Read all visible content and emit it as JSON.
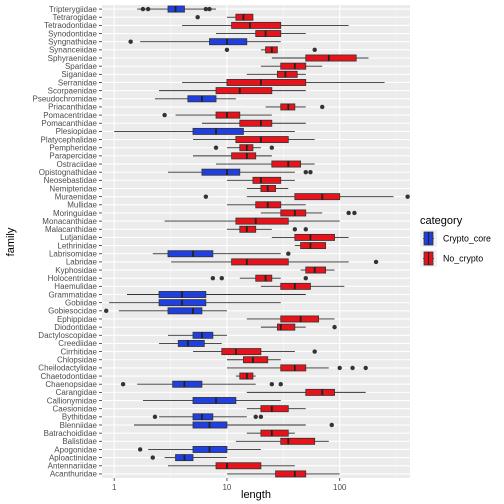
{
  "chart_data": {
    "type": "boxplot",
    "orientation": "horizontal",
    "xlabel": "length",
    "ylabel": "family",
    "x_scale": "log10",
    "x_ticks": [
      1,
      10,
      100
    ],
    "x_tick_labels": [
      "1",
      "10",
      "100"
    ],
    "xlim": [
      0.78,
      420
    ],
    "grid": true,
    "legend": {
      "title": "category",
      "placement": "right",
      "entries": [
        {
          "label": "Crypto_core",
          "color": "#1f3fe0"
        },
        {
          "label": "No_crypto",
          "color": "#e8121a"
        }
      ]
    },
    "families": [
      {
        "name": "Tripterygiidae",
        "category": "Crypto_core",
        "whisker_low": 1.6,
        "q1": 3.0,
        "median": 3.5,
        "q3": 4.2,
        "whisker_high": 8.0,
        "outliers": [
          1.8,
          2.0,
          6.5,
          7.0
        ]
      },
      {
        "name": "Tetrarogidae",
        "category": "No_crypto",
        "whisker_low": 10,
        "q1": 12,
        "median": 14,
        "q3": 17,
        "whisker_high": 17,
        "outliers": [
          5.5
        ]
      },
      {
        "name": "Tetraodontidae",
        "category": "No_crypto",
        "whisker_low": 4,
        "q1": 11,
        "median": 16,
        "q3": 30,
        "whisker_high": 120,
        "outliers": []
      },
      {
        "name": "Synodontidae",
        "category": "No_crypto",
        "whisker_low": 8,
        "q1": 18,
        "median": 22,
        "q3": 30,
        "whisker_high": 50,
        "outliers": []
      },
      {
        "name": "Syngnathidae",
        "category": "Crypto_core",
        "whisker_low": 1.7,
        "q1": 7,
        "median": 10,
        "q3": 15,
        "whisker_high": 30,
        "outliers": [
          1.4
        ]
      },
      {
        "name": "Synanceiidae",
        "category": "No_crypto",
        "whisker_low": 20,
        "q1": 22,
        "median": 25,
        "q3": 28,
        "whisker_high": 28,
        "outliers": [
          10,
          60
        ]
      },
      {
        "name": "Sphyraenidae",
        "category": "No_crypto",
        "whisker_low": 25,
        "q1": 50,
        "median": 80,
        "q3": 140,
        "whisker_high": 180,
        "outliers": []
      },
      {
        "name": "Sparidae",
        "category": "No_crypto",
        "whisker_low": 20,
        "q1": 30,
        "median": 40,
        "q3": 50,
        "whisker_high": 70,
        "outliers": []
      },
      {
        "name": "Siganidae",
        "category": "No_crypto",
        "whisker_low": 15,
        "q1": 28,
        "median": 33,
        "q3": 42,
        "whisker_high": 50,
        "outliers": []
      },
      {
        "name": "Serranidae",
        "category": "No_crypto",
        "whisker_low": 4,
        "q1": 10,
        "median": 20,
        "q3": 50,
        "whisker_high": 250,
        "outliers": []
      },
      {
        "name": "Scorpaenidae",
        "category": "No_crypto",
        "whisker_low": 2.5,
        "q1": 8,
        "median": 13,
        "q3": 25,
        "whisker_high": 50,
        "outliers": []
      },
      {
        "name": "Pseudochromidae",
        "category": "Crypto_core",
        "whisker_low": 2.3,
        "q1": 4.5,
        "median": 6,
        "q3": 8,
        "whisker_high": 12,
        "outliers": []
      },
      {
        "name": "Priacanthidae",
        "category": "No_crypto",
        "whisker_low": 22,
        "q1": 30,
        "median": 35,
        "q3": 40,
        "whisker_high": 50,
        "outliers": [
          70
        ]
      },
      {
        "name": "Pomacentridae",
        "category": "No_crypto",
        "whisker_low": 3.5,
        "q1": 8,
        "median": 10,
        "q3": 13,
        "whisker_high": 25,
        "outliers": [
          2.8
        ]
      },
      {
        "name": "Pomacanthidae",
        "category": "No_crypto",
        "whisker_low": 6,
        "q1": 13,
        "median": 20,
        "q3": 25,
        "whisker_high": 50,
        "outliers": []
      },
      {
        "name": "Plesiopidae",
        "category": "Crypto_core",
        "whisker_low": 1,
        "q1": 5,
        "median": 8,
        "q3": 14,
        "whisker_high": 40,
        "outliers": []
      },
      {
        "name": "Platycephalidae",
        "category": "No_crypto",
        "whisker_low": 5,
        "q1": 12,
        "median": 20,
        "q3": 35,
        "whisker_high": 60,
        "outliers": []
      },
      {
        "name": "Pempheridae",
        "category": "No_crypto",
        "whisker_low": 10,
        "q1": 13,
        "median": 15,
        "q3": 17,
        "whisker_high": 20,
        "outliers": [
          8,
          25
        ]
      },
      {
        "name": "Parapercidae",
        "category": "No_crypto",
        "whisker_low": 5,
        "q1": 11,
        "median": 15,
        "q3": 18,
        "whisker_high": 25,
        "outliers": []
      },
      {
        "name": "Ostraciidae",
        "category": "No_crypto",
        "whisker_low": 8,
        "q1": 25,
        "median": 35,
        "q3": 45,
        "whisker_high": 60,
        "outliers": []
      },
      {
        "name": "Opistognathidae",
        "category": "Crypto_core",
        "whisker_low": 3,
        "q1": 6,
        "median": 10,
        "q3": 13,
        "whisker_high": 40,
        "outliers": [
          50,
          55
        ]
      },
      {
        "name": "Neosebastidae",
        "category": "No_crypto",
        "whisker_low": 10,
        "q1": 17,
        "median": 20,
        "q3": 30,
        "whisker_high": 40,
        "outliers": []
      },
      {
        "name": "Nemipteridae",
        "category": "No_crypto",
        "whisker_low": 15,
        "q1": 20,
        "median": 23,
        "q3": 27,
        "whisker_high": 35,
        "outliers": []
      },
      {
        "name": "Muraenidae",
        "category": "No_crypto",
        "whisker_low": 15,
        "q1": 40,
        "median": 70,
        "q3": 100,
        "whisker_high": 300,
        "outliers": [
          6.5,
          400
        ]
      },
      {
        "name": "Mullidae",
        "category": "No_crypto",
        "whisker_low": 10,
        "q1": 18,
        "median": 23,
        "q3": 30,
        "whisker_high": 50,
        "outliers": []
      },
      {
        "name": "Moringuidae",
        "category": "No_crypto",
        "whisker_low": 20,
        "q1": 30,
        "median": 40,
        "q3": 50,
        "whisker_high": 70,
        "outliers": [
          120,
          135
        ]
      },
      {
        "name": "Monacanthidae",
        "category": "No_crypto",
        "whisker_low": 2.8,
        "q1": 12,
        "median": 18,
        "q3": 35,
        "whisker_high": 100,
        "outliers": []
      },
      {
        "name": "Malacanthidae",
        "category": "No_crypto",
        "whisker_low": 10,
        "q1": 13,
        "median": 15,
        "q3": 18,
        "whisker_high": 25,
        "outliers": [
          40,
          50
        ]
      },
      {
        "name": "Lutjanidae",
        "category": "No_crypto",
        "whisker_low": 25,
        "q1": 40,
        "median": 55,
        "q3": 90,
        "whisker_high": 120,
        "outliers": []
      },
      {
        "name": "Lethrinidae",
        "category": "No_crypto",
        "whisker_low": 40,
        "q1": 45,
        "median": 55,
        "q3": 75,
        "whisker_high": 75,
        "outliers": []
      },
      {
        "name": "Labrisomidae",
        "category": "Crypto_core",
        "whisker_low": 2.2,
        "q1": 3,
        "median": 5,
        "q3": 7.5,
        "whisker_high": 30,
        "outliers": [
          35
        ]
      },
      {
        "name": "Labridae",
        "category": "No_crypto",
        "whisker_low": 3.2,
        "q1": 11,
        "median": 15,
        "q3": 35,
        "whisker_high": 120,
        "outliers": [
          210
        ]
      },
      {
        "name": "Kyphosidae",
        "category": "No_crypto",
        "whisker_low": 45,
        "q1": 50,
        "median": 60,
        "q3": 75,
        "whisker_high": 90,
        "outliers": []
      },
      {
        "name": "Holocentridae",
        "category": "No_crypto",
        "whisker_low": 13,
        "q1": 18,
        "median": 22,
        "q3": 25,
        "whisker_high": 30,
        "outliers": [
          7.5,
          9,
          50
        ]
      },
      {
        "name": "Haemulidae",
        "category": "No_crypto",
        "whisker_low": 20,
        "q1": 30,
        "median": 40,
        "q3": 55,
        "whisker_high": 110,
        "outliers": []
      },
      {
        "name": "Grammatidae",
        "category": "Crypto_core",
        "whisker_low": 1.3,
        "q1": 2.5,
        "median": 4,
        "q3": 6.5,
        "whisker_high": 50,
        "outliers": []
      },
      {
        "name": "Gobiidae",
        "category": "Crypto_core",
        "whisker_low": 0.9,
        "q1": 2.5,
        "median": 4,
        "q3": 6.5,
        "whisker_high": 30,
        "outliers": []
      },
      {
        "name": "Gobiesocidae",
        "category": "Crypto_core",
        "whisker_low": 1.1,
        "q1": 3,
        "median": 5,
        "q3": 6,
        "whisker_high": 10,
        "outliers": [
          0.85
        ]
      },
      {
        "name": "Ephippidae",
        "category": "No_crypto",
        "whisker_low": 15,
        "q1": 30,
        "median": 45,
        "q3": 65,
        "whisker_high": 90,
        "outliers": []
      },
      {
        "name": "Diodontidae",
        "category": "No_crypto",
        "whisker_low": 20,
        "q1": 28,
        "median": 30,
        "q3": 40,
        "whisker_high": 50,
        "outliers": [
          90
        ]
      },
      {
        "name": "Dactyloscopidae",
        "category": "Crypto_core",
        "whisker_low": 3,
        "q1": 5,
        "median": 6,
        "q3": 7.5,
        "whisker_high": 10,
        "outliers": []
      },
      {
        "name": "Creediidae",
        "category": "Crypto_core",
        "whisker_low": 2.5,
        "q1": 3.7,
        "median": 4.5,
        "q3": 6.3,
        "whisker_high": 9,
        "outliers": []
      },
      {
        "name": "Cirrhitidae",
        "category": "No_crypto",
        "whisker_low": 5,
        "q1": 9,
        "median": 12,
        "q3": 20,
        "whisker_high": 40,
        "outliers": [
          60
        ]
      },
      {
        "name": "Chlopsidae",
        "category": "No_crypto",
        "whisker_low": 10,
        "q1": 14,
        "median": 17,
        "q3": 23,
        "whisker_high": 30,
        "outliers": []
      },
      {
        "name": "Cheilodactylidae",
        "category": "No_crypto",
        "whisker_low": 10,
        "q1": 30,
        "median": 40,
        "q3": 50,
        "whisker_high": 80,
        "outliers": [
          100,
          130,
          170
        ]
      },
      {
        "name": "Chaetodontidae",
        "category": "No_crypto",
        "whisker_low": 12,
        "q1": 13,
        "median": 15,
        "q3": 17,
        "whisker_high": 18,
        "outliers": []
      },
      {
        "name": "Chaenopsidae",
        "category": "Crypto_core",
        "whisker_low": 1.6,
        "q1": 3.3,
        "median": 4.2,
        "q3": 6,
        "whisker_high": 18,
        "outliers": [
          1.2,
          25,
          30
        ]
      },
      {
        "name": "Carangidae",
        "category": "No_crypto",
        "whisker_low": 15,
        "q1": 50,
        "median": 70,
        "q3": 90,
        "whisker_high": 170,
        "outliers": []
      },
      {
        "name": "Callionymidae",
        "category": "Crypto_core",
        "whisker_low": 1.8,
        "q1": 5,
        "median": 8,
        "q3": 12,
        "whisker_high": 30,
        "outliers": []
      },
      {
        "name": "Caesionidae",
        "category": "No_crypto",
        "whisker_low": 15,
        "q1": 20,
        "median": 25,
        "q3": 35,
        "whisker_high": 50,
        "outliers": []
      },
      {
        "name": "Bythitidae",
        "category": "Crypto_core",
        "whisker_low": 2.5,
        "q1": 5,
        "median": 6,
        "q3": 7.5,
        "whisker_high": 15,
        "outliers": [
          2.3,
          18,
          20
        ]
      },
      {
        "name": "Blenniidae",
        "category": "Crypto_core",
        "whisker_low": 1.5,
        "q1": 5,
        "median": 7,
        "q3": 10,
        "whisker_high": 50,
        "outliers": [
          85
        ]
      },
      {
        "name": "Batrachoididae",
        "category": "No_crypto",
        "whisker_low": 15,
        "q1": 20,
        "median": 25,
        "q3": 35,
        "whisker_high": 40,
        "outliers": []
      },
      {
        "name": "Balistidae",
        "category": "No_crypto",
        "whisker_low": 12,
        "q1": 30,
        "median": 35,
        "q3": 60,
        "whisker_high": 80,
        "outliers": []
      },
      {
        "name": "Apogonidae",
        "category": "Crypto_core",
        "whisker_low": 2,
        "q1": 5,
        "median": 7,
        "q3": 10,
        "whisker_high": 20,
        "outliers": [
          1.7
        ]
      },
      {
        "name": "Aploactinidae",
        "category": "Crypto_core",
        "whisker_low": 2.8,
        "q1": 3.5,
        "median": 4.2,
        "q3": 5,
        "whisker_high": 10,
        "outliers": [
          2.2
        ]
      },
      {
        "name": "Antennariidae",
        "category": "No_crypto",
        "whisker_low": 3,
        "q1": 8,
        "median": 10,
        "q3": 20,
        "whisker_high": 40,
        "outliers": []
      },
      {
        "name": "Acanthuridae",
        "category": "No_crypto",
        "whisker_low": 10,
        "q1": 27,
        "median": 40,
        "q3": 50,
        "whisker_high": 100,
        "outliers": []
      }
    ]
  }
}
